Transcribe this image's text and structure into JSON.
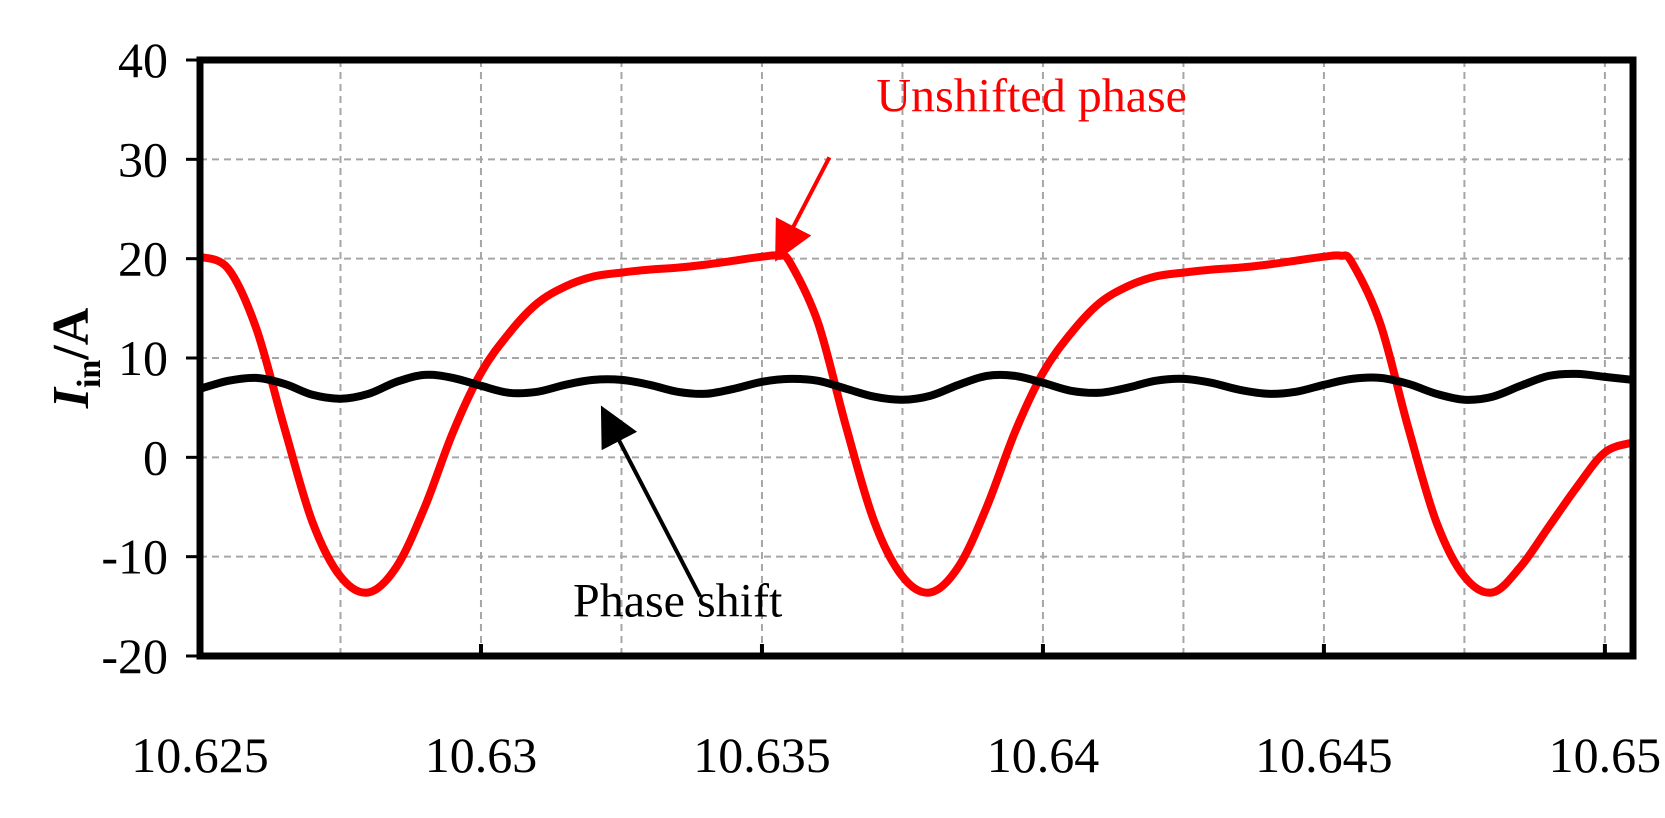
{
  "chart_data": {
    "type": "line",
    "title": "",
    "xlabel": "",
    "ylabel": {
      "main": "I",
      "subscript": "in",
      "suffix": "/A"
    },
    "xlim": [
      10.625,
      10.6505
    ],
    "ylim": [
      -20,
      40
    ],
    "xticks": [
      10.625,
      10.63,
      10.635,
      10.64,
      10.645,
      10.65
    ],
    "xtick_labels": [
      "10.625",
      "10.63",
      "10.635",
      "10.64",
      "10.645",
      "10.65"
    ],
    "yticks": [
      -20,
      -10,
      0,
      10,
      20,
      30,
      40
    ],
    "ytick_labels": [
      "-20",
      "-10",
      "0",
      "10",
      "20",
      "30",
      "40"
    ],
    "grid": true,
    "legend": "none",
    "series": [
      {
        "color": "#ff0000",
        "x": [
          10.625,
          10.6255,
          10.626,
          10.6265,
          10.627,
          10.6275,
          10.628,
          10.6285,
          10.629,
          10.6295,
          10.63,
          10.6305,
          10.631,
          10.6315,
          10.632,
          10.6325,
          10.633,
          10.6335,
          10.634,
          10.6345,
          10.635,
          10.6353,
          10.6355,
          10.636,
          10.6365,
          10.637,
          10.6375,
          10.638,
          10.6385,
          10.639,
          10.6395,
          10.64,
          10.6405,
          10.641,
          10.6415,
          10.642,
          10.6425,
          10.643,
          10.6435,
          10.644,
          10.6445,
          10.645,
          10.6453,
          10.6455,
          10.646,
          10.6465,
          10.647,
          10.6475,
          10.648,
          10.6485,
          10.649,
          10.6495,
          10.65,
          10.6505
        ],
        "y": [
          20.2,
          19.0,
          13.0,
          3.0,
          -6.5,
          -12.0,
          -13.6,
          -11.0,
          -5.0,
          2.5,
          8.5,
          12.5,
          15.5,
          17.2,
          18.2,
          18.6,
          18.9,
          19.1,
          19.4,
          19.8,
          20.2,
          20.3,
          19.6,
          13.5,
          3.0,
          -6.5,
          -12.0,
          -13.6,
          -11.0,
          -5.0,
          2.5,
          8.5,
          12.5,
          15.5,
          17.2,
          18.2,
          18.6,
          18.9,
          19.1,
          19.4,
          19.8,
          20.2,
          20.3,
          19.6,
          13.5,
          3.0,
          -6.5,
          -12.0,
          -13.6,
          -11.0,
          -7.0,
          -3.0,
          0.5,
          1.5
        ]
      },
      {
        "color": "#000000",
        "x": [
          10.625,
          10.6255,
          10.626,
          10.6265,
          10.627,
          10.6275,
          10.628,
          10.6285,
          10.629,
          10.6295,
          10.63,
          10.6305,
          10.631,
          10.6315,
          10.632,
          10.6325,
          10.633,
          10.6335,
          10.634,
          10.6345,
          10.635,
          10.6355,
          10.636,
          10.6365,
          10.637,
          10.6375,
          10.638,
          10.6385,
          10.639,
          10.6395,
          10.64,
          10.6405,
          10.641,
          10.6415,
          10.642,
          10.6425,
          10.643,
          10.6435,
          10.644,
          10.6445,
          10.645,
          10.6455,
          10.646,
          10.6465,
          10.647,
          10.6475,
          10.648,
          10.6485,
          10.649,
          10.6495,
          10.65,
          10.6505
        ],
        "y": [
          6.9,
          7.7,
          8.0,
          7.4,
          6.3,
          5.9,
          6.4,
          7.6,
          8.3,
          8.0,
          7.2,
          6.5,
          6.6,
          7.3,
          7.8,
          7.8,
          7.3,
          6.6,
          6.4,
          6.9,
          7.6,
          7.9,
          7.7,
          6.9,
          6.1,
          5.8,
          6.2,
          7.3,
          8.2,
          8.2,
          7.5,
          6.7,
          6.5,
          7.0,
          7.7,
          7.9,
          7.5,
          6.8,
          6.4,
          6.6,
          7.3,
          7.9,
          8.0,
          7.4,
          6.4,
          5.8,
          6.1,
          7.2,
          8.2,
          8.4,
          8.1,
          7.8
        ]
      }
    ],
    "annotations": [
      {
        "text": "Unshifted phase",
        "color": "#ff0000",
        "series": 0,
        "text_x": 10.6398,
        "text_y": 34.8,
        "arrow_from": [
          10.6362,
          30.2
        ],
        "arrow_to": [
          10.6353,
          20.4
        ]
      },
      {
        "text": "Phase shift",
        "color": "#000000",
        "series": 1,
        "text_x": 10.6335,
        "text_y": -16.0,
        "arrow_from": [
          10.6339,
          -14.0
        ],
        "arrow_to": [
          10.6322,
          4.5
        ]
      }
    ]
  }
}
